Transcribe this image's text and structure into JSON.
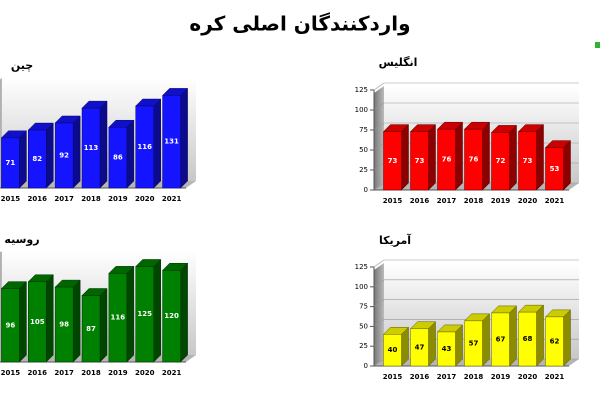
{
  "title": "واردکنندگان اصلی کره",
  "chart_data": [
    {
      "type": "bar",
      "title": "چین",
      "categories": [
        "2015",
        "2016",
        "2017",
        "2018",
        "2019",
        "2020",
        "2021"
      ],
      "values": [
        71,
        82,
        92,
        113,
        86,
        116,
        131
      ],
      "color": "#1414ff",
      "ylim": [
        0,
        150
      ]
    },
    {
      "type": "bar",
      "title": "انگلیس",
      "categories": [
        "2015",
        "2016",
        "2017",
        "2018",
        "2019",
        "2020",
        "2021"
      ],
      "values": [
        73,
        73,
        76,
        76,
        72,
        73,
        53
      ],
      "color": "#ff0000",
      "ylim": [
        0,
        125
      ],
      "yticks": [
        0,
        25,
        50,
        75,
        100,
        125
      ],
      "grid": true
    },
    {
      "type": "bar",
      "title": "روسیه",
      "categories": [
        "2015",
        "2016",
        "2017",
        "2018",
        "2019",
        "2020",
        "2021"
      ],
      "values": [
        96,
        105,
        98,
        87,
        116,
        125,
        120
      ],
      "color": "#008000",
      "ylim": [
        0,
        140
      ]
    },
    {
      "type": "bar",
      "title": "آمریکا",
      "categories": [
        "2015",
        "2016",
        "2017",
        "2018",
        "2019",
        "2020",
        "2021"
      ],
      "values": [
        40,
        47,
        43,
        57,
        67,
        68,
        62
      ],
      "color": "#ffff00",
      "ylim": [
        0,
        125
      ],
      "yticks": [
        0,
        25,
        50,
        75,
        100,
        125
      ],
      "grid": true
    }
  ]
}
